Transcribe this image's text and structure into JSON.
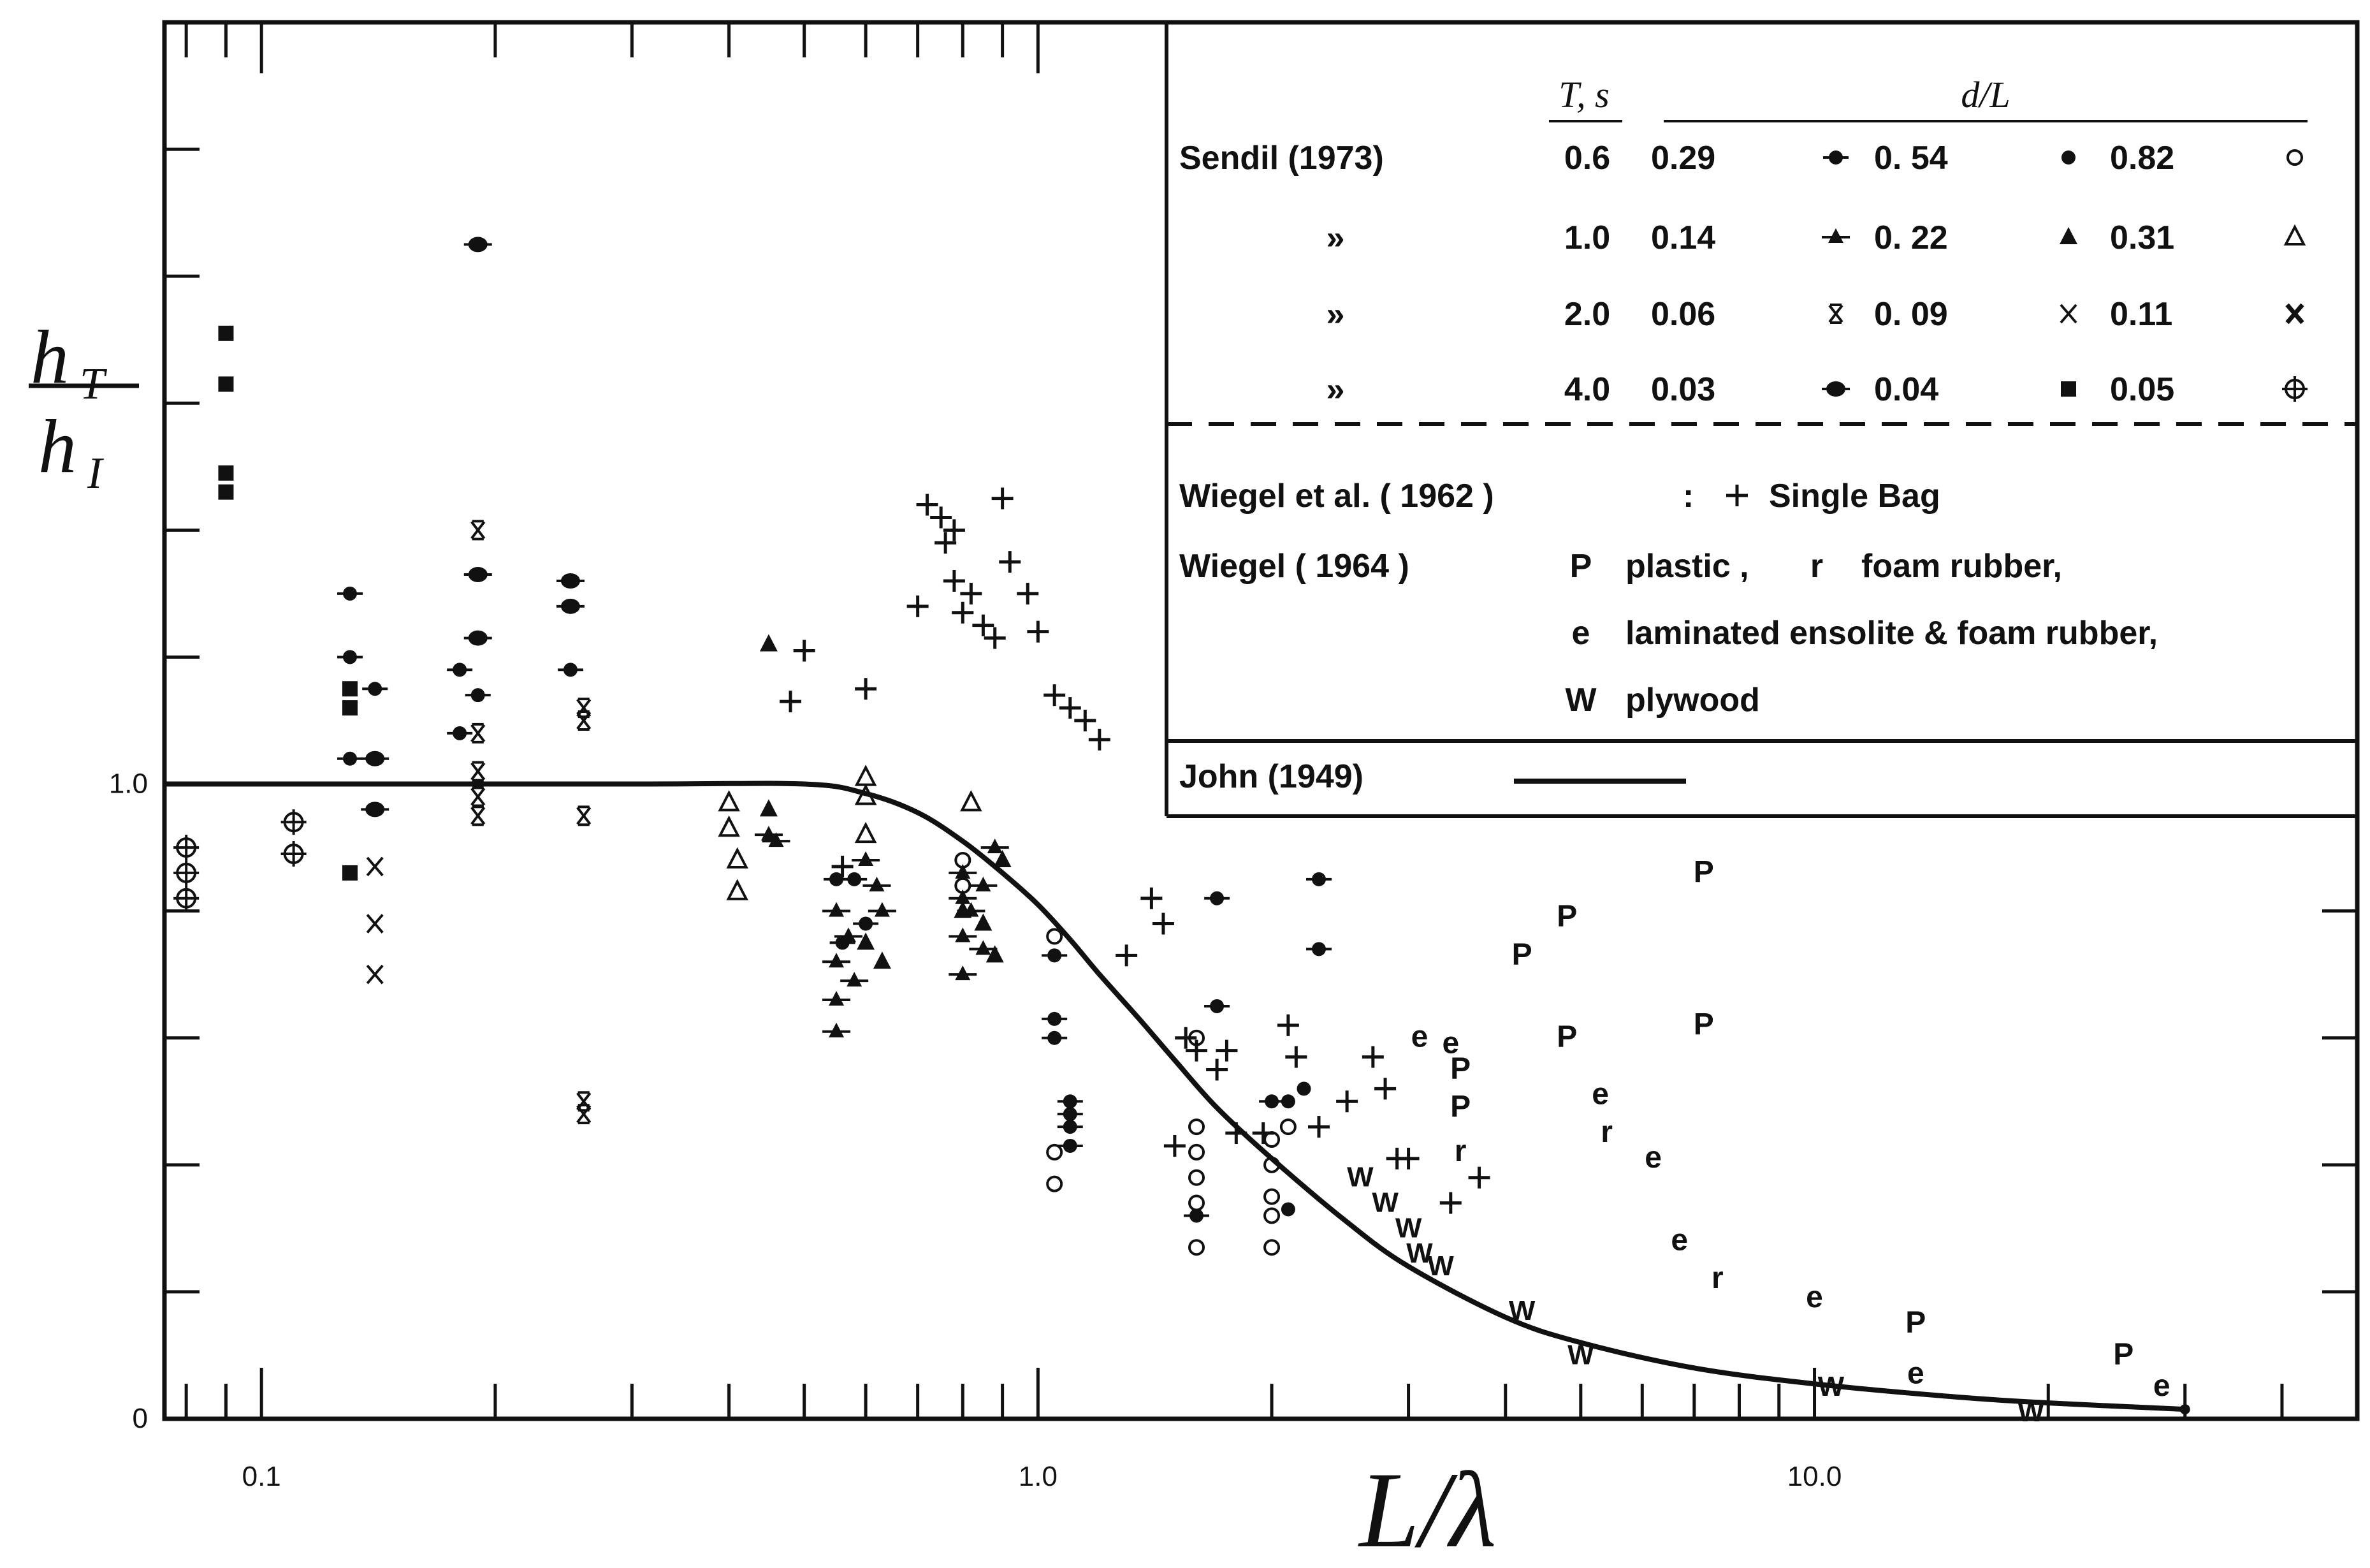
{
  "chart_data": {
    "type": "scatter",
    "title": "",
    "xlabel": "L/λ",
    "ylabel_num": "h",
    "ylabel_num_sub": "T",
    "ylabel_den": "h",
    "ylabel_den_sub": "I",
    "xscale": "log",
    "xlim": [
      0.075,
      50
    ],
    "ylim": [
      0,
      2.2
    ],
    "grid": false,
    "legend_placement": "top-right",
    "x_tick_labels": [
      {
        "value": 0.1,
        "label": "0.1"
      },
      {
        "value": 1.0,
        "label": "1.0"
      },
      {
        "value": 10.0,
        "label": "10.0"
      }
    ],
    "y_tick_labels": [
      {
        "value": 1.0,
        "label": "1.0"
      },
      {
        "value": 0.0,
        "label": "0"
      }
    ],
    "curve": {
      "name": "John (1949)",
      "points": [
        [
          0.075,
          1.0
        ],
        [
          0.3,
          1.0
        ],
        [
          0.5,
          1.0
        ],
        [
          0.6,
          0.985
        ],
        [
          0.7,
          0.955
        ],
        [
          0.8,
          0.91
        ],
        [
          0.9,
          0.86
        ],
        [
          1.0,
          0.81
        ],
        [
          1.1,
          0.755
        ],
        [
          1.2,
          0.7
        ],
        [
          1.35,
          0.63
        ],
        [
          1.5,
          0.565
        ],
        [
          1.7,
          0.49
        ],
        [
          2.0,
          0.41
        ],
        [
          2.5,
          0.31
        ],
        [
          3.0,
          0.24
        ],
        [
          4.0,
          0.16
        ],
        [
          5.0,
          0.12
        ],
        [
          7.0,
          0.08
        ],
        [
          10.0,
          0.055
        ],
        [
          15.0,
          0.035
        ],
        [
          20.0,
          0.025
        ],
        [
          30.0,
          0.015
        ]
      ]
    },
    "legend": {
      "header_T": "T, s",
      "header_dL": "d/L",
      "sendil_label": "Sendil (1973)",
      "ditto": "»",
      "rows": [
        {
          "T": "0.6",
          "d1": "0.29",
          "s1": "diamond-dot",
          "d2": "0. 54",
          "s2": "dot",
          "d3": "0.82",
          "s3": "circle-open"
        },
        {
          "T": "1.0",
          "d1": "0.14",
          "s1": "tri-plus",
          "d2": "0. 22",
          "s2": "tri",
          "d3": "0.31",
          "s3": "tri-open"
        },
        {
          "T": "2.0",
          "d1": "0.06",
          "s1": "x-tick",
          "d2": "0. 09",
          "s2": "x",
          "d3": "0.11",
          "s3": "x-bold"
        },
        {
          "T": "4.0",
          "d1": "0.03",
          "s1": "hex",
          "d2": "0.04",
          "s2": "square",
          "d3": "0.05",
          "s3": "circle-plus"
        }
      ],
      "wiegel62_label": "Wiegel et al. ( 1962 )",
      "wiegel62_sep": ":",
      "wiegel62_desc": "Single   Bag",
      "wiegel64_label": "Wiegel ( 1964 )",
      "p_letter": "P",
      "p_desc": "plastic ,",
      "r_letter": "r",
      "r_desc": "foam   rubber,",
      "e_letter": "e",
      "e_desc": "laminated  ensolite   &  foam rubber,",
      "w_letter": "W",
      "w_desc": "plywood",
      "john_label": "John (1949)"
    },
    "series": [
      {
        "marker": "diamond-dot",
        "points": [
          [
            0.13,
            1.3
          ],
          [
            0.13,
            1.2
          ],
          [
            0.13,
            1.04
          ],
          [
            0.14,
            1.15
          ],
          [
            0.18,
            1.18
          ],
          [
            0.18,
            1.08
          ],
          [
            0.19,
            1.14
          ],
          [
            0.25,
            1.18
          ],
          [
            0.55,
            0.85
          ],
          [
            0.56,
            0.75
          ],
          [
            0.58,
            0.85
          ],
          [
            0.6,
            0.78
          ],
          [
            1.05,
            0.73
          ],
          [
            1.05,
            0.63
          ],
          [
            1.05,
            0.6
          ],
          [
            1.1,
            0.5
          ],
          [
            1.1,
            0.48
          ],
          [
            1.1,
            0.46
          ],
          [
            1.1,
            0.43
          ],
          [
            1.6,
            0.32
          ],
          [
            1.7,
            0.65
          ],
          [
            1.7,
            0.82
          ],
          [
            2.0,
            0.5
          ],
          [
            2.3,
            0.85
          ],
          [
            2.3,
            0.74
          ]
        ]
      },
      {
        "marker": "dot",
        "points": [
          [
            2.1,
            0.5
          ],
          [
            2.2,
            0.52
          ],
          [
            2.1,
            0.33
          ]
        ]
      },
      {
        "marker": "circle-open",
        "points": [
          [
            0.8,
            0.88
          ],
          [
            0.8,
            0.84
          ],
          [
            1.05,
            0.76
          ],
          [
            1.05,
            0.42
          ],
          [
            1.05,
            0.37
          ],
          [
            1.6,
            0.6
          ],
          [
            1.6,
            0.46
          ],
          [
            1.6,
            0.42
          ],
          [
            1.6,
            0.38
          ],
          [
            1.6,
            0.34
          ],
          [
            1.6,
            0.27
          ],
          [
            2.0,
            0.44
          ],
          [
            2.0,
            0.4
          ],
          [
            2.0,
            0.35
          ],
          [
            2.0,
            0.32
          ],
          [
            2.0,
            0.27
          ],
          [
            2.1,
            0.46
          ]
        ]
      },
      {
        "marker": "tri-plus",
        "points": [
          [
            0.45,
            0.92
          ],
          [
            0.46,
            0.91
          ],
          [
            0.55,
            0.8
          ],
          [
            0.55,
            0.72
          ],
          [
            0.55,
            0.66
          ],
          [
            0.55,
            0.61
          ],
          [
            0.57,
            0.76
          ],
          [
            0.58,
            0.69
          ],
          [
            0.6,
            0.88
          ],
          [
            0.62,
            0.84
          ],
          [
            0.63,
            0.8
          ],
          [
            0.8,
            0.86
          ],
          [
            0.8,
            0.82
          ],
          [
            0.8,
            0.76
          ],
          [
            0.8,
            0.7
          ],
          [
            0.82,
            0.8
          ],
          [
            0.85,
            0.84
          ],
          [
            0.85,
            0.74
          ],
          [
            0.88,
            0.9
          ]
        ]
      },
      {
        "marker": "tri",
        "points": [
          [
            0.45,
            1.22
          ],
          [
            0.45,
            0.96
          ],
          [
            0.6,
            0.75
          ],
          [
            0.63,
            0.72
          ],
          [
            0.8,
            0.8
          ],
          [
            0.85,
            0.78
          ],
          [
            0.88,
            0.73
          ],
          [
            0.9,
            0.88
          ]
        ]
      },
      {
        "marker": "tri-open",
        "points": [
          [
            0.4,
            0.97
          ],
          [
            0.4,
            0.93
          ],
          [
            0.41,
            0.88
          ],
          [
            0.41,
            0.83
          ],
          [
            0.6,
            1.01
          ],
          [
            0.6,
            0.98
          ],
          [
            0.6,
            0.92
          ],
          [
            0.82,
            0.97
          ]
        ]
      },
      {
        "marker": "x-tick",
        "points": [
          [
            0.19,
            1.4
          ],
          [
            0.19,
            1.08
          ],
          [
            0.19,
            1.02
          ],
          [
            0.19,
            0.98
          ],
          [
            0.19,
            0.95
          ],
          [
            0.26,
            1.12
          ],
          [
            0.26,
            1.1
          ],
          [
            0.26,
            0.95
          ],
          [
            0.26,
            0.5
          ],
          [
            0.26,
            0.48
          ]
        ]
      },
      {
        "marker": "x",
        "points": [
          [
            0.14,
            0.87
          ],
          [
            0.14,
            0.78
          ],
          [
            0.14,
            0.7
          ]
        ]
      },
      {
        "marker": "hex",
        "points": [
          [
            0.19,
            1.85
          ],
          [
            0.19,
            1.33
          ],
          [
            0.19,
            1.23
          ],
          [
            0.25,
            1.32
          ],
          [
            0.25,
            1.28
          ],
          [
            0.14,
            1.04
          ],
          [
            0.14,
            0.96
          ]
        ]
      },
      {
        "marker": "square",
        "points": [
          [
            0.09,
            1.71
          ],
          [
            0.09,
            1.63
          ],
          [
            0.09,
            1.49
          ],
          [
            0.09,
            1.46
          ],
          [
            0.13,
            1.15
          ],
          [
            0.13,
            1.12
          ],
          [
            0.13,
            0.86
          ]
        ]
      },
      {
        "marker": "circle-plus",
        "points": [
          [
            0.08,
            0.9
          ],
          [
            0.08,
            0.86
          ],
          [
            0.08,
            0.82
          ],
          [
            0.11,
            0.94
          ],
          [
            0.11,
            0.89
          ]
        ]
      },
      {
        "marker": "plus",
        "points": [
          [
            0.48,
            1.13
          ],
          [
            0.5,
            1.21
          ],
          [
            0.56,
            0.87
          ],
          [
            0.6,
            1.15
          ],
          [
            0.7,
            1.28
          ],
          [
            0.72,
            1.44
          ],
          [
            0.75,
            1.42
          ],
          [
            0.76,
            1.38
          ],
          [
            0.78,
            1.4
          ],
          [
            0.78,
            1.32
          ],
          [
            0.8,
            1.27
          ],
          [
            0.82,
            1.3
          ],
          [
            0.85,
            1.25
          ],
          [
            0.88,
            1.23
          ],
          [
            0.9,
            1.45
          ],
          [
            0.92,
            1.35
          ],
          [
            0.97,
            1.3
          ],
          [
            1.0,
            1.24
          ],
          [
            1.05,
            1.14
          ],
          [
            1.1,
            1.12
          ],
          [
            1.15,
            1.1
          ],
          [
            1.2,
            1.07
          ],
          [
            1.3,
            0.73
          ],
          [
            1.4,
            0.82
          ],
          [
            1.45,
            0.78
          ],
          [
            1.5,
            0.43
          ],
          [
            1.55,
            0.6
          ],
          [
            1.6,
            0.58
          ],
          [
            1.7,
            0.55
          ],
          [
            1.75,
            0.58
          ],
          [
            1.8,
            0.45
          ],
          [
            1.95,
            0.45
          ],
          [
            2.1,
            0.62
          ],
          [
            2.15,
            0.57
          ],
          [
            2.3,
            0.46
          ],
          [
            2.5,
            0.5
          ],
          [
            2.7,
            0.57
          ],
          [
            2.8,
            0.52
          ],
          [
            2.9,
            0.41
          ],
          [
            3.0,
            0.41
          ],
          [
            3.4,
            0.34
          ],
          [
            3.7,
            0.38
          ]
        ]
      },
      {
        "marker": "P",
        "points": [
          [
            3.5,
            0.55
          ],
          [
            3.5,
            0.49
          ],
          [
            4.2,
            0.73
          ],
          [
            4.8,
            0.79
          ],
          [
            4.8,
            0.6
          ],
          [
            7.2,
            0.86
          ],
          [
            7.2,
            0.62
          ],
          [
            13.5,
            0.15
          ],
          [
            25.0,
            0.1
          ]
        ]
      },
      {
        "marker": "e",
        "points": [
          [
            3.1,
            0.6
          ],
          [
            3.4,
            0.59
          ],
          [
            5.3,
            0.51
          ],
          [
            6.2,
            0.41
          ],
          [
            6.7,
            0.28
          ],
          [
            10.0,
            0.19
          ],
          [
            13.5,
            0.07
          ],
          [
            28.0,
            0.05
          ]
        ]
      },
      {
        "marker": "r",
        "points": [
          [
            3.5,
            0.42
          ],
          [
            5.4,
            0.45
          ],
          [
            7.5,
            0.22
          ]
        ]
      },
      {
        "marker": "W",
        "points": [
          [
            2.6,
            0.38
          ],
          [
            2.8,
            0.34
          ],
          [
            3.0,
            0.3
          ],
          [
            3.1,
            0.26
          ],
          [
            3.3,
            0.24
          ],
          [
            4.2,
            0.17
          ],
          [
            5.0,
            0.1
          ],
          [
            10.5,
            0.05
          ],
          [
            19.0,
            0.01
          ]
        ]
      }
    ]
  }
}
